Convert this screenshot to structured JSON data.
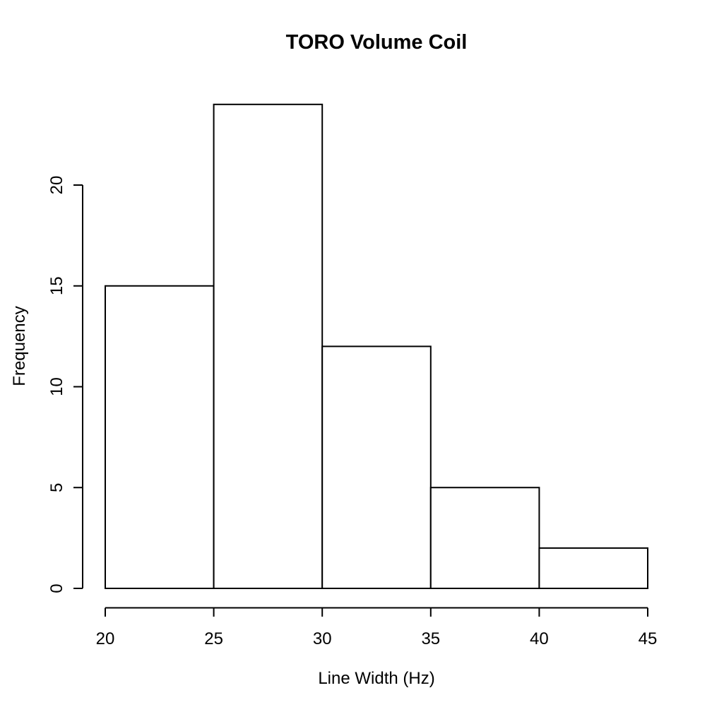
{
  "chart_data": {
    "type": "bar",
    "subtype": "histogram",
    "title": "TORO Volume Coil",
    "xlabel": "Line Width (Hz)",
    "ylabel": "Frequency",
    "bins": [
      {
        "x0": 20,
        "x1": 25,
        "count": 15
      },
      {
        "x0": 25,
        "x1": 30,
        "count": 24
      },
      {
        "x0": 30,
        "x1": 35,
        "count": 12
      },
      {
        "x0": 35,
        "x1": 40,
        "count": 5
      },
      {
        "x0": 40,
        "x1": 45,
        "count": 2
      }
    ],
    "x_ticks": [
      20,
      25,
      30,
      35,
      40,
      45
    ],
    "y_ticks": [
      0,
      5,
      10,
      15,
      20
    ],
    "xlim": [
      20,
      45
    ],
    "ylim": [
      0,
      24
    ],
    "grid": false,
    "legend_position": "none",
    "bar_fill": "#ffffff",
    "bar_stroke": "#000000",
    "axis_color": "#000000",
    "text_color": "#000000",
    "background": "#ffffff"
  }
}
